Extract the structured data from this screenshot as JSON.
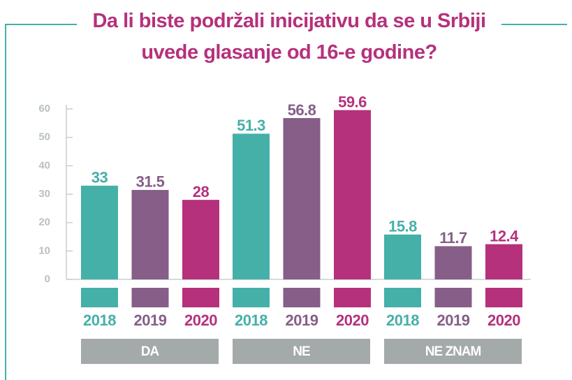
{
  "chart_data": {
    "type": "bar",
    "title": "Da li biste podržali inicijativu da se u Srbiji uvede glasanje od 16-e godine?",
    "categories": [
      "DA",
      "NE",
      "NE ZNAM"
    ],
    "series": [
      {
        "name": "2018",
        "color": "#45b0a8",
        "values": [
          33,
          51.3,
          15.8
        ]
      },
      {
        "name": "2019",
        "color": "#865e88",
        "values": [
          31.5,
          56.8,
          11.7
        ]
      },
      {
        "name": "2020",
        "color": "#b5317c",
        "values": [
          28,
          59.6,
          12.4
        ]
      }
    ],
    "ylim": [
      0,
      60
    ],
    "yticks": [
      0,
      10,
      20,
      30,
      40,
      50,
      60
    ],
    "grid": false
  }
}
